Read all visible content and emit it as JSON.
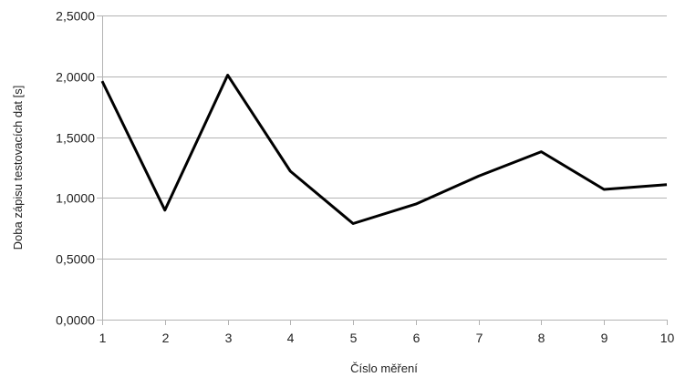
{
  "chart_data": {
    "type": "line",
    "title": "",
    "xlabel": "Číslo měření",
    "ylabel": "Doba zápisu testovacích dat [s]",
    "x": [
      1,
      2,
      3,
      4,
      5,
      6,
      7,
      8,
      9,
      10
    ],
    "x_tick_labels": [
      "1",
      "2",
      "3",
      "4",
      "5",
      "6",
      "7",
      "8",
      "9",
      "10"
    ],
    "y_ticks": [
      0,
      0.5,
      1,
      1.5,
      2,
      2.5
    ],
    "y_tick_labels": [
      "0,0000",
      "0,5000",
      "1,0000",
      "1,5000",
      "2,0000",
      "2,5000"
    ],
    "ylim": [
      0,
      2.5
    ],
    "xlim": [
      1,
      10
    ],
    "grid": "horizontal",
    "legend": "none",
    "series": [
      {
        "values": [
          1.96,
          0.9,
          2.01,
          1.22,
          0.79,
          0.95,
          1.18,
          1.38,
          1.07,
          1.11
        ],
        "color": "#000000"
      }
    ]
  }
}
